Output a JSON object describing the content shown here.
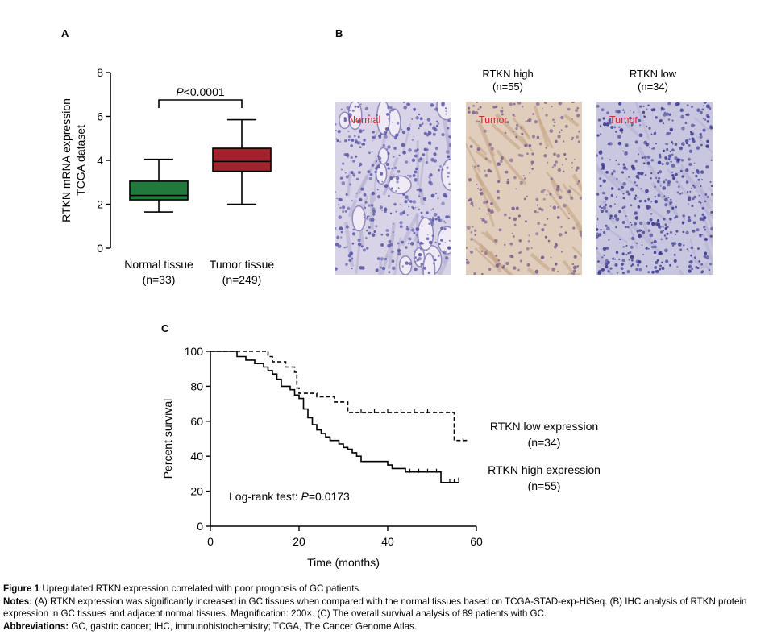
{
  "panels": {
    "a": {
      "label": "A"
    },
    "b": {
      "label": "B",
      "col_headers": [
        {
          "title": "RTKN high",
          "n": "(n=55)"
        },
        {
          "title": "RTKN low",
          "n": "(n=34)"
        }
      ],
      "images": [
        {
          "label": "Normal",
          "tint": "#c9c2df"
        },
        {
          "label": "Tumor",
          "tint": "#d9c2b0"
        },
        {
          "label": "Tumor",
          "tint": "#b9b6d8"
        }
      ]
    },
    "c": {
      "label": "C"
    }
  },
  "chart_data": [
    {
      "type": "box",
      "ylabel_line1": "RTKN mRNA expression",
      "ylabel_line2": "TCGA dataset",
      "ylim": [
        0,
        8
      ],
      "yticks": [
        0,
        2,
        4,
        6,
        8
      ],
      "significance": {
        "prefix": "P",
        "text": "<0.0001"
      },
      "categories": [
        {
          "name": "Normal tissue",
          "n": "(n=33)",
          "color": "#1f7a3c",
          "min": 1.65,
          "q1": 2.2,
          "median": 2.4,
          "q3": 3.05,
          "max": 4.05
        },
        {
          "name": "Tumor tissue",
          "n": "(n=249)",
          "color": "#a0232b",
          "min": 2.0,
          "q1": 3.5,
          "median": 3.95,
          "q3": 4.55,
          "max": 5.85
        }
      ]
    },
    {
      "type": "line",
      "subtype": "kaplan-meier",
      "xlabel": "Time (months)",
      "ylabel": "Percent survival",
      "xlim": [
        0,
        60
      ],
      "ylim": [
        0,
        100
      ],
      "xticks": [
        0,
        20,
        40,
        60
      ],
      "yticks": [
        0,
        20,
        40,
        60,
        80,
        100
      ],
      "annotation": {
        "prefix": "Log-rank test: ",
        "p_italic": "P",
        "value": "=0.0173"
      },
      "series": [
        {
          "name": "RTKN low expression",
          "n": "(n=34)",
          "style": "dashed",
          "points": [
            [
              0,
              100
            ],
            [
              13,
              100
            ],
            [
              13,
              97
            ],
            [
              14,
              97
            ],
            [
              14,
              94
            ],
            [
              17,
              94
            ],
            [
              17,
              91
            ],
            [
              19,
              91
            ],
            [
              19,
              88
            ],
            [
              19.5,
              88
            ],
            [
              19.5,
              79
            ],
            [
              20,
              79
            ],
            [
              20,
              76
            ],
            [
              24,
              76
            ],
            [
              24,
              74
            ],
            [
              28,
              74
            ],
            [
              28,
              71
            ],
            [
              31,
              71
            ],
            [
              31,
              65
            ],
            [
              55,
              65
            ],
            [
              55,
              49
            ],
            [
              58,
              49
            ]
          ],
          "censor": [
            [
              34,
              65
            ],
            [
              37,
              65
            ],
            [
              40,
              65
            ],
            [
              43,
              65
            ],
            [
              46,
              65
            ],
            [
              49,
              65
            ],
            [
              57,
              49
            ]
          ]
        },
        {
          "name": "RTKN high expression",
          "n": "(n=55)",
          "style": "solid",
          "points": [
            [
              0,
              100
            ],
            [
              6,
              100
            ],
            [
              6,
              97
            ],
            [
              8,
              97
            ],
            [
              8,
              95
            ],
            [
              10,
              95
            ],
            [
              10,
              93
            ],
            [
              12,
              93
            ],
            [
              12,
              91
            ],
            [
              13,
              91
            ],
            [
              13,
              89
            ],
            [
              14,
              89
            ],
            [
              14,
              87
            ],
            [
              15,
              87
            ],
            [
              15,
              84
            ],
            [
              16,
              84
            ],
            [
              16,
              80
            ],
            [
              18,
              80
            ],
            [
              18,
              78
            ],
            [
              19,
              78
            ],
            [
              19,
              75
            ],
            [
              20,
              75
            ],
            [
              20,
              73
            ],
            [
              21,
              73
            ],
            [
              21,
              67
            ],
            [
              22,
              67
            ],
            [
              22,
              62
            ],
            [
              23,
              62
            ],
            [
              23,
              58
            ],
            [
              24,
              58
            ],
            [
              24,
              55
            ],
            [
              25,
              55
            ],
            [
              25,
              53
            ],
            [
              26,
              53
            ],
            [
              26,
              51
            ],
            [
              27,
              51
            ],
            [
              27,
              49
            ],
            [
              29,
              49
            ],
            [
              29,
              47
            ],
            [
              30,
              47
            ],
            [
              30,
              45
            ],
            [
              31,
              45
            ],
            [
              31,
              44
            ],
            [
              32,
              44
            ],
            [
              32,
              42
            ],
            [
              33,
              42
            ],
            [
              33,
              40
            ],
            [
              34,
              40
            ],
            [
              34,
              37
            ],
            [
              40,
              37
            ],
            [
              40,
              35
            ],
            [
              41,
              35
            ],
            [
              41,
              33
            ],
            [
              44,
              33
            ],
            [
              44,
              31
            ],
            [
              52,
              31
            ],
            [
              52,
              25
            ],
            [
              56,
              25
            ]
          ],
          "censor": [
            [
              45,
              31
            ],
            [
              47,
              31
            ],
            [
              49,
              31
            ],
            [
              51,
              31
            ],
            [
              54,
              25
            ],
            [
              55,
              25
            ],
            [
              56,
              26
            ]
          ]
        }
      ]
    }
  ],
  "caption": {
    "figure_label": "Figure 1",
    "figure_title": " Upregulated RTKN expression correlated with poor prognosis of GC patients.",
    "notes_label": "Notes:",
    "notes_text": " (A) RTKN expression was significantly increased in GC tissues when compared with the normal tissues based on TCGA-STAD-exp-HiSeq. (B) IHC analysis of RTKN protein expression in GC tissues and adjacent normal tissues. Magnification: 200×. (C) The overall survival analysis of 89 patients with GC.",
    "abbrev_label": "Abbreviations:",
    "abbrev_text": " GC, gastric cancer; IHC, immunohistochemistry; TCGA, The Cancer Genome Atlas."
  }
}
